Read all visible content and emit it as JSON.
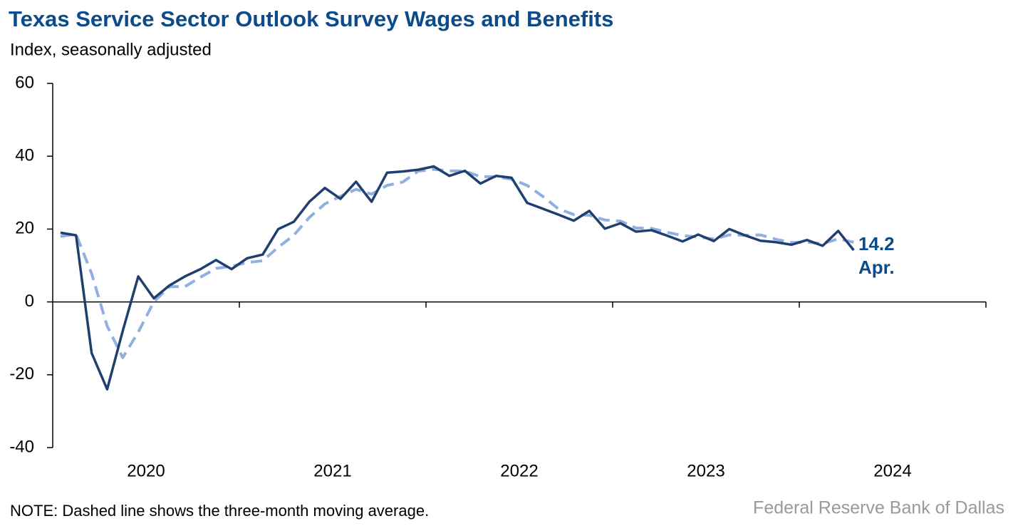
{
  "chart_data": {
    "type": "line",
    "title": "Texas Service Sector Outlook Survey Wages and Benefits",
    "subtitle": "Index, seasonally adjusted",
    "note": "NOTE: Dashed line shows the three-month moving average.",
    "source": "Federal Reserve Bank of Dallas",
    "annotation": "Apr.",
    "year_labels": [
      "2020",
      "2021",
      "2022",
      "2023",
      "2024"
    ],
    "months_per_year": 12,
    "ylim": [
      -40,
      60
    ],
    "yticks": [
      -40,
      -20,
      0,
      20,
      40,
      60
    ],
    "series": [
      {
        "name": "Wages and benefits",
        "color": "#1f3f6e",
        "dashed": false,
        "values": [
          19.0,
          18.3,
          -14,
          -24,
          -8,
          7,
          1,
          4.5,
          7,
          9,
          11.5,
          9,
          12,
          13,
          20,
          22,
          27.5,
          31.3,
          28.3,
          33,
          27.5,
          35.5,
          35.8,
          36.3,
          37.2,
          34.6,
          36,
          32.5,
          34.6,
          34.1,
          27.2,
          25.6,
          24,
          22.3,
          25,
          20.1,
          21.6,
          19.3,
          19.7,
          18.2,
          16.6,
          18.5,
          16.7,
          20,
          18.3,
          16.8,
          16.4,
          15.7,
          17,
          15.4,
          19.5,
          14.2
        ]
      },
      {
        "name": "Three-month moving average",
        "color": "#8fb0e0",
        "dashed": true,
        "values": [
          18,
          18.6,
          7.8,
          -6.6,
          -15.3,
          -8.3,
          0,
          4.2,
          4.2,
          6.8,
          9.2,
          9.8,
          10.8,
          11.3,
          15,
          18.3,
          23.2,
          26.9,
          29,
          30.9,
          29.6,
          32,
          32.9,
          35.9,
          36.4,
          36,
          35.9,
          34.4,
          34.4,
          33.7,
          32,
          29,
          25.6,
          24,
          23.8,
          22.5,
          22.2,
          20.3,
          20.2,
          19.1,
          18.2,
          17.8,
          17.3,
          18.4,
          18.3,
          18.4,
          17.2,
          16.3,
          16.4,
          16,
          17.3,
          16.4
        ]
      }
    ]
  }
}
